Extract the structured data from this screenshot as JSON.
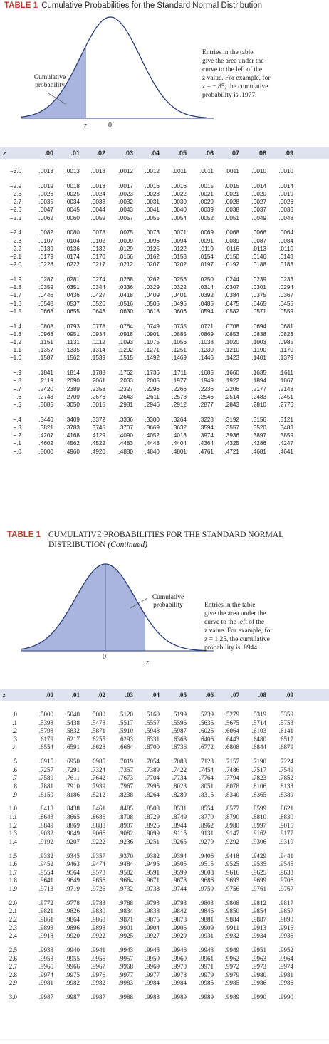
{
  "table1": {
    "label": "TABLE 1",
    "title": "Cumulative Probabilities for the Standard Normal Distribution",
    "cumulative_label": "Cumulative\nprobability",
    "note": "Entries in the table\ngive the area under the\ncurve to the left of the\nz value. For example, for\nz = −.85, the cumulative\nprobability is .1977.",
    "axis_z": "z",
    "axis_zero": "0",
    "columns": [
      "z",
      ".00",
      ".01",
      ".02",
      ".03",
      ".04",
      ".05",
      ".06",
      ".07",
      ".08",
      ".09"
    ],
    "groups": [
      [
        [
          "−3.0",
          ".0013",
          ".0013",
          ".0013",
          ".0012",
          ".0012",
          ".0011",
          ".0011",
          ".0011",
          ".0010",
          ".0010"
        ]
      ],
      [
        [
          "−2.9",
          ".0019",
          ".0018",
          ".0018",
          ".0017",
          ".0016",
          ".0016",
          ".0015",
          ".0015",
          ".0014",
          ".0014"
        ],
        [
          "−2.8",
          ".0026",
          ".0025",
          ".0024",
          ".0023",
          ".0023",
          ".0022",
          ".0021",
          ".0021",
          ".0020",
          ".0019"
        ],
        [
          "−2.7",
          ".0035",
          ".0034",
          ".0033",
          ".0032",
          ".0031",
          ".0030",
          ".0029",
          ".0028",
          ".0027",
          ".0026"
        ],
        [
          "−2.6",
          ".0047",
          ".0045",
          ".0044",
          ".0043",
          ".0041",
          ".0040",
          ".0039",
          ".0038",
          ".0037",
          ".0036"
        ],
        [
          "−2.5",
          ".0062",
          ".0060",
          ".0059",
          ".0057",
          ".0055",
          ".0054",
          ".0052",
          ".0051",
          ".0049",
          ".0048"
        ]
      ],
      [
        [
          "−2.4",
          ".0082",
          ".0080",
          ".0078",
          ".0075",
          ".0073",
          ".0071",
          ".0069",
          ".0068",
          ".0066",
          ".0064"
        ],
        [
          "−2.3",
          ".0107",
          ".0104",
          ".0102",
          ".0099",
          ".0096",
          ".0094",
          ".0091",
          ".0089",
          ".0087",
          ".0084"
        ],
        [
          "−2.2",
          ".0139",
          ".0136",
          ".0132",
          ".0129",
          ".0125",
          ".0122",
          ".0119",
          ".0116",
          ".0113",
          ".0110"
        ],
        [
          "−2.1",
          ".0179",
          ".0174",
          ".0170",
          ".0166",
          ".0162",
          ".0158",
          ".0154",
          ".0150",
          ".0146",
          ".0143"
        ],
        [
          "−2.0",
          ".0228",
          ".0222",
          ".0217",
          ".0212",
          ".0207",
          ".0202",
          ".0197",
          ".0192",
          ".0188",
          ".0183"
        ]
      ],
      [
        [
          "−1.9",
          ".0287",
          ".0281",
          ".0274",
          ".0268",
          ".0262",
          ".0256",
          ".0250",
          ".0244",
          ".0239",
          ".0233"
        ],
        [
          "−1.8",
          ".0359",
          ".0351",
          ".0344",
          ".0336",
          ".0329",
          ".0322",
          ".0314",
          ".0307",
          ".0301",
          ".0294"
        ],
        [
          "−1.7",
          ".0446",
          ".0436",
          ".0427",
          ".0418",
          ".0409",
          ".0401",
          ".0392",
          ".0384",
          ".0375",
          ".0367"
        ],
        [
          "−1.6",
          ".0548",
          ".0537",
          ".0526",
          ".0516",
          ".0505",
          ".0495",
          ".0485",
          ".0475",
          ".0465",
          ".0455"
        ],
        [
          "−1.5",
          ".0668",
          ".0655",
          ".0643",
          ".0630",
          ".0618",
          ".0606",
          ".0594",
          ".0582",
          ".0571",
          ".0559"
        ]
      ],
      [
        [
          "−1.4",
          ".0808",
          ".0793",
          ".0778",
          ".0764",
          ".0749",
          ".0735",
          ".0721",
          ".0708",
          ".0694",
          ".0681"
        ],
        [
          "−1.3",
          ".0968",
          ".0951",
          ".0934",
          ".0918",
          ".0901",
          ".0885",
          ".0869",
          ".0853",
          ".0838",
          ".0823"
        ],
        [
          "−1.2",
          ".1151",
          ".1131",
          ".1112",
          ".1093",
          ".1075",
          ".1056",
          ".1038",
          ".1020",
          ".1003",
          ".0985"
        ],
        [
          "−1.1",
          ".1357",
          ".1335",
          ".1314",
          ".1292",
          ".1271",
          ".1251",
          ".1230",
          ".1210",
          ".1190",
          ".1170"
        ],
        [
          "−1.0",
          ".1587",
          ".1562",
          ".1539",
          ".1515",
          ".1492",
          ".1469",
          ".1446",
          ".1423",
          ".1401",
          ".1379"
        ]
      ],
      [
        [
          "−.9",
          ".1841",
          ".1814",
          ".1788",
          ".1762",
          ".1736",
          ".1711",
          ".1685",
          ".1660",
          ".1635",
          ".1611"
        ],
        [
          "−.8",
          ".2119",
          ".2090",
          ".2061",
          ".2033",
          ".2005",
          ".1977",
          ".1949",
          ".1922",
          ".1894",
          ".1867"
        ],
        [
          "−.7",
          ".2420",
          ".2389",
          ".2358",
          ".2327",
          ".2296",
          ".2266",
          ".2236",
          ".2206",
          ".2177",
          ".2148"
        ],
        [
          "−.6",
          ".2743",
          ".2709",
          ".2676",
          ".2643",
          ".2611",
          ".2578",
          ".2546",
          ".2514",
          ".2483",
          ".2451"
        ],
        [
          "−.5",
          ".3085",
          ".3050",
          ".3015",
          ".2981",
          ".2946",
          ".2912",
          ".2877",
          ".2843",
          ".2810",
          ".2776"
        ]
      ],
      [
        [
          "−.4",
          ".3446",
          ".3409",
          ".3372",
          ".3336",
          ".3300",
          ".3264",
          ".3228",
          ".3192",
          ".3156",
          ".3121"
        ],
        [
          "−.3",
          ".3821",
          ".3783",
          ".3745",
          ".3707",
          ".3669",
          ".3632",
          ".3594",
          ".3557",
          ".3520",
          ".3483"
        ],
        [
          "−.2",
          ".4207",
          ".4168",
          ".4129",
          ".4090",
          ".4052",
          ".4013",
          ".3974",
          ".3936",
          ".3897",
          ".3859"
        ],
        [
          "−.1",
          ".4602",
          ".4562",
          ".4522",
          ".4483",
          ".4443",
          ".4404",
          ".4364",
          ".4325",
          ".4286",
          ".4247"
        ],
        [
          "−.0",
          ".5000",
          ".4960",
          ".4920",
          ".4880",
          ".4840",
          ".4801",
          ".4761",
          ".4721",
          ".4681",
          ".4641"
        ]
      ]
    ]
  },
  "table2": {
    "label": "TABLE 1",
    "title": "CUMULATIVE PROBABILITIES FOR THE STANDARD NORMAL",
    "title_line2": "DISTRIBUTION",
    "continued": "(Continued)",
    "cumulative_label": "Cumulative\nprobability",
    "note": "Entries in the table\ngive the area under the\ncurve to the left of the\nz value. For example, for\nz = 1.25, the cumulative\nprobability is .8944.",
    "axis_z": "z",
    "axis_zero": "0",
    "columns": [
      "z",
      ".00",
      ".01",
      ".02",
      ".03",
      ".04",
      ".05",
      ".06",
      ".07",
      ".08",
      ".09"
    ],
    "groups": [
      [
        [
          ".0",
          ".5000",
          ".5040",
          ".5080",
          ".5120",
          ".5160",
          ".5199",
          ".5239",
          ".5279",
          ".5319",
          ".5359"
        ],
        [
          ".1",
          ".5398",
          ".5438",
          ".5478",
          ".5517",
          ".5557",
          ".5596",
          ".5636",
          ".5675",
          ".5714",
          ".5753"
        ],
        [
          ".2",
          ".5793",
          ".5832",
          ".5871",
          ".5910",
          ".5948",
          ".5987",
          ".6026",
          ".6064",
          ".6103",
          ".6141"
        ],
        [
          ".3",
          ".6179",
          ".6217",
          ".6255",
          ".6293",
          ".6331",
          ".6368",
          ".6406",
          ".6443",
          ".6480",
          ".6517"
        ],
        [
          ".4",
          ".6554",
          ".6591",
          ".6628",
          ".6664",
          ".6700",
          ".6736",
          ".6772",
          ".6808",
          ".6844",
          ".6879"
        ]
      ],
      [
        [
          ".5",
          ".6915",
          ".6950",
          ".6985",
          ".7019",
          ".7054",
          ".7088",
          ".7123",
          ".7157",
          ".7190",
          ".7224"
        ],
        [
          ".6",
          ".7257",
          ".7291",
          ".7324",
          ".7357",
          ".7389",
          ".7422",
          ".7454",
          ".7486",
          ".7517",
          ".7549"
        ],
        [
          ".7",
          ".7580",
          ".7611",
          ".7642",
          ".7673",
          ".7704",
          ".7734",
          ".7764",
          ".7794",
          ".7823",
          ".7852"
        ],
        [
          ".8",
          ".7881",
          ".7910",
          ".7939",
          ".7967",
          ".7995",
          ".8023",
          ".8051",
          ".8078",
          ".8106",
          ".8133"
        ],
        [
          ".9",
          ".8159",
          ".8186",
          ".8212",
          ".8238",
          ".8264",
          ".8289",
          ".8315",
          ".8340",
          ".8365",
          ".8389"
        ]
      ],
      [
        [
          "1.0",
          ".8413",
          ".8438",
          ".8461",
          ".8485",
          ".8508",
          ".8531",
          ".8554",
          ".8577",
          ".8599",
          ".8621"
        ],
        [
          "1.1",
          ".8643",
          ".8665",
          ".8686",
          ".8708",
          ".8729",
          ".8749",
          ".8770",
          ".8790",
          ".8810",
          ".8830"
        ],
        [
          "1.2",
          ".8849",
          ".8869",
          ".8888",
          ".8907",
          ".8925",
          ".8944",
          ".8962",
          ".8980",
          ".8997",
          ".9015"
        ],
        [
          "1.3",
          ".9032",
          ".9049",
          ".9066",
          ".9082",
          ".9099",
          ".9115",
          ".9131",
          ".9147",
          ".9162",
          ".9177"
        ],
        [
          "1.4",
          ".9192",
          ".9207",
          ".9222",
          ".9236",
          ".9251",
          ".9265",
          ".9279",
          ".9292",
          ".9306",
          ".9319"
        ]
      ],
      [
        [
          "1.5",
          ".9332",
          ".9345",
          ".9357",
          ".9370",
          ".9382",
          ".9394",
          ".9406",
          ".9418",
          ".9429",
          ".9441"
        ],
        [
          "1.6",
          ".9452",
          ".9463",
          ".9474",
          ".9484",
          ".9495",
          ".9505",
          ".9515",
          ".9525",
          ".9535",
          ".9545"
        ],
        [
          "1.7",
          ".9554",
          ".9564",
          ".9573",
          ".9582",
          ".9591",
          ".9599",
          ".9608",
          ".9616",
          ".9625",
          ".9633"
        ],
        [
          "1.8",
          ".9641",
          ".9649",
          ".9656",
          ".9664",
          ".9671",
          ".9678",
          ".9686",
          ".9693",
          ".9699",
          ".9706"
        ],
        [
          "1.9",
          ".9713",
          ".9719",
          ".9726",
          ".9732",
          ".9738",
          ".9744",
          ".9750",
          ".9756",
          ".9761",
          ".9767"
        ]
      ],
      [
        [
          "2.0",
          ".9772",
          ".9778",
          ".9783",
          ".9788",
          ".9793",
          ".9798",
          ".9803",
          ".9808",
          ".9812",
          ".9817"
        ],
        [
          "2.1",
          ".9821",
          ".9826",
          ".9830",
          ".9834",
          ".9838",
          ".9842",
          ".9846",
          ".9850",
          ".9854",
          ".9857"
        ],
        [
          "2.2",
          ".9861",
          ".9864",
          ".9868",
          ".9871",
          ".9875",
          ".9878",
          ".9881",
          ".9884",
          ".9887",
          ".9890"
        ],
        [
          "2.3",
          ".9893",
          ".9896",
          ".9898",
          ".9901",
          ".9904",
          ".9906",
          ".9909",
          ".9911",
          ".9913",
          ".9916"
        ],
        [
          "2.4",
          ".9918",
          ".9920",
          ".9922",
          ".9925",
          ".9927",
          ".9929",
          ".9931",
          ".9932",
          ".9934",
          ".9936"
        ]
      ],
      [
        [
          "2.5",
          ".9938",
          ".9940",
          ".9941",
          ".9943",
          ".9945",
          ".9946",
          ".9948",
          ".9949",
          ".9951",
          ".9952"
        ],
        [
          "2.6",
          ".9953",
          ".9955",
          ".9956",
          ".9957",
          ".9959",
          ".9960",
          ".9961",
          ".9962",
          ".9963",
          ".9964"
        ],
        [
          "2.7",
          ".9965",
          ".9966",
          ".9967",
          ".9968",
          ".9969",
          ".9970",
          ".9971",
          ".9972",
          ".9973",
          ".9974"
        ],
        [
          "2.8",
          ".9974",
          ".9975",
          ".9976",
          ".9977",
          ".9977",
          ".9978",
          ".9979",
          ".9979",
          ".9980",
          ".9981"
        ],
        [
          "2.9",
          ".9981",
          ".9982",
          ".9982",
          ".9983",
          ".9984",
          ".9984",
          ".9985",
          ".9985",
          ".9986",
          ".9986"
        ]
      ],
      [
        [
          "3.0",
          ".9987",
          ".9987",
          ".9987",
          ".9988",
          ".9988",
          ".9989",
          ".9989",
          ".9989",
          ".9990",
          ".9990"
        ]
      ]
    ]
  },
  "colors": {
    "shade": "#a9b5dc",
    "header_bg": "#dfe3ef",
    "label_red": "#c0392b"
  }
}
